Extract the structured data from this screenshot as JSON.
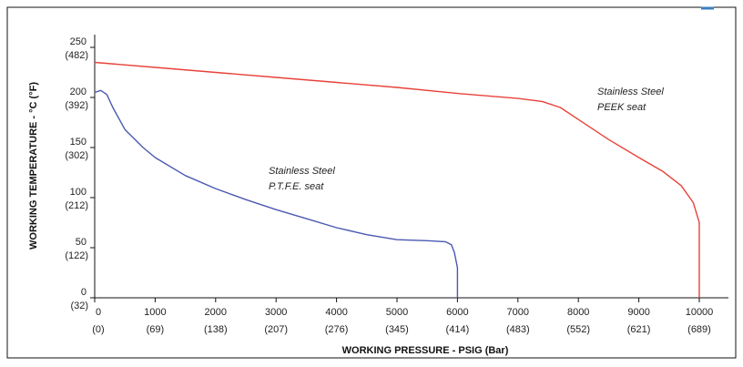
{
  "chart_data": {
    "type": "line",
    "title": "",
    "xlabel": "WORKING PRESSURE - PSIG (Bar)",
    "ylabel": "WORKING TEMPERATURE - °C (°F)",
    "xlim": [
      0,
      10600
    ],
    "ylim": [
      0,
      260
    ],
    "grid": false,
    "colors": {
      "peek": "#e8423a",
      "ptfe": "#4a58b0",
      "frame": "#111111",
      "accent": "#3a7fc1"
    },
    "x_ticks": [
      {
        "value": 0,
        "label": "0",
        "sublabel": "(0)"
      },
      {
        "value": 1000,
        "label": "1000",
        "sublabel": "(69)"
      },
      {
        "value": 2000,
        "label": "2000",
        "sublabel": "(138)"
      },
      {
        "value": 3000,
        "label": "3000",
        "sublabel": "(207)"
      },
      {
        "value": 4000,
        "label": "4000",
        "sublabel": "(276)"
      },
      {
        "value": 5000,
        "label": "5000",
        "sublabel": "(345)"
      },
      {
        "value": 6000,
        "label": "6000",
        "sublabel": "(414)"
      },
      {
        "value": 7000,
        "label": "7000",
        "sublabel": "(483)"
      },
      {
        "value": 8000,
        "label": "8000",
        "sublabel": "(552)"
      },
      {
        "value": 9000,
        "label": "9000",
        "sublabel": "(621)"
      },
      {
        "value": 10000,
        "label": "10000",
        "sublabel": "(689)"
      }
    ],
    "y_ticks": [
      {
        "value": 0,
        "label": "0",
        "sublabel": "(32)"
      },
      {
        "value": 50,
        "label": "50",
        "sublabel": "(122)"
      },
      {
        "value": 100,
        "label": "100",
        "sublabel": "(212)"
      },
      {
        "value": 150,
        "label": "150",
        "sublabel": "(302)"
      },
      {
        "value": 200,
        "label": "200",
        "sublabel": "(392)"
      },
      {
        "value": 250,
        "label": "250",
        "sublabel": "(482)"
      }
    ],
    "series": [
      {
        "id": "peek",
        "annotation": [
          "Stainless Steel",
          "PEEK seat"
        ],
        "x": [
          0,
          1000,
          2000,
          3000,
          4000,
          5000,
          6000,
          7000,
          7400,
          7700,
          8000,
          8500,
          9000,
          9400,
          9700,
          9900,
          10000,
          10000
        ],
        "y": [
          235,
          230,
          225,
          220,
          215,
          210,
          204,
          199,
          196,
          190,
          178,
          158,
          140,
          126,
          112,
          95,
          75,
          0
        ]
      },
      {
        "id": "ptfe",
        "annotation": [
          "Stainless Steel",
          "P.T.F.E. seat"
        ],
        "x": [
          0,
          100,
          200,
          300,
          500,
          800,
          1000,
          1500,
          2000,
          2500,
          3000,
          3500,
          4000,
          4500,
          5000,
          5500,
          5800,
          5900,
          5950,
          6000,
          6000
        ],
        "y": [
          205,
          207,
          203,
          190,
          168,
          150,
          140,
          122,
          109,
          98,
          88,
          79,
          70,
          63,
          58,
          57,
          56,
          53,
          45,
          30,
          0
        ]
      }
    ]
  }
}
